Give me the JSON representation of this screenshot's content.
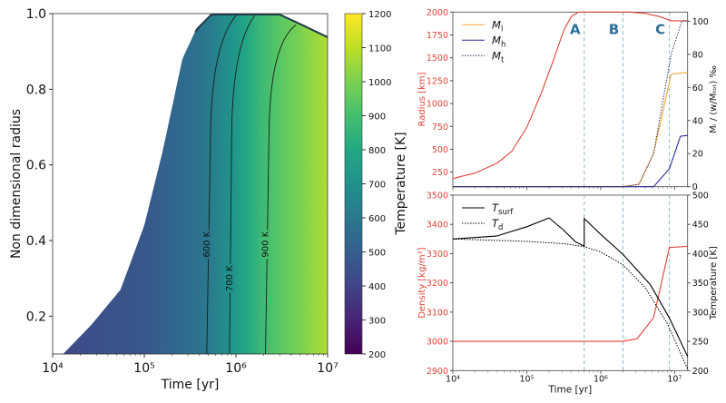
{
  "chart_data": [
    {
      "type": "heatmap",
      "xlabel": "Time [yr]",
      "ylabel": "Non dimensional radius",
      "xscale": "log",
      "xlim": [
        10000,
        10000000
      ],
      "ylim": [
        0.1,
        1.0
      ],
      "xticks": [
        {
          "v": 10000,
          "label": "10⁴"
        },
        {
          "v": 100000,
          "label": "10⁵"
        },
        {
          "v": 1000000,
          "label": "10⁶"
        },
        {
          "v": 10000000,
          "label": "10⁷"
        }
      ],
      "yticks": [
        {
          "v": 0.2,
          "label": "0.2"
        },
        {
          "v": 0.4,
          "label": "0.4"
        },
        {
          "v": 0.6,
          "label": "0.6"
        },
        {
          "v": 0.8,
          "label": "0.8"
        },
        {
          "v": 1.0,
          "label": "1.0"
        }
      ],
      "colorbar": {
        "label": "Temperature [K]",
        "colormap": "viridis",
        "range": [
          200,
          1200
        ],
        "ticks": [
          "200",
          "300",
          "400",
          "500",
          "600",
          "700",
          "800",
          "900",
          "1000",
          "1100",
          "1200"
        ]
      },
      "outer_boundary": {
        "t": [
          13000,
          26000,
          55000,
          100000,
          160000,
          260000,
          370000,
          540000,
          3000000,
          5000000,
          10000000
        ],
        "r": [
          0.1,
          0.175,
          0.27,
          0.44,
          0.64,
          0.88,
          0.96,
          1.0,
          1.0,
          0.975,
          0.94
        ]
      },
      "temperature_vs_time": {
        "t": [
          10000,
          100000,
          500000,
          850000,
          2150000,
          10000000
        ],
        "T": [
          420,
          470,
          600,
          700,
          900,
          1080
        ]
      },
      "contours": [
        {
          "label": "600 K",
          "t_bottom": 480000,
          "t_mid": 530000,
          "t_top": 1000000
        },
        {
          "label": "700 K",
          "t_bottom": 850000,
          "t_mid": 900000,
          "t_top": 1600000
        },
        {
          "label": "900 K",
          "t_bottom": 2100000,
          "t_mid": 2300000,
          "t_top": 4500000,
          "r_top": 0.97
        }
      ]
    },
    {
      "type": "line",
      "xscale": "log",
      "xlim": [
        10000,
        15000000
      ],
      "ylabel": "Radius [km]",
      "ylim": [
        91,
        2000
      ],
      "yticks": [
        "250",
        "500",
        "750",
        "1000",
        "1250",
        "1500",
        "1750",
        "2000"
      ],
      "y2label": "Mᵢ / (w/Mₜₒₜ) ‰",
      "y2lim": [
        0,
        105.5
      ],
      "y2ticks": [
        "0",
        "20",
        "40",
        "60",
        "80",
        "100"
      ],
      "radius_color": "#e0443a",
      "radius": {
        "t": [
          10000,
          20000,
          40000,
          63000,
          100000,
          160000,
          224000,
          316000,
          400000,
          500000,
          2500000,
          4000000,
          6300000,
          9000000,
          15000000
        ],
        "km": [
          180,
          240,
          350,
          480,
          740,
          1130,
          1450,
          1800,
          1950,
          2000,
          2000,
          1985,
          1950,
          1905,
          1905
        ]
      },
      "series": [
        {
          "name": "M",
          "sub": "l",
          "color": "#f0a830",
          "dash": "solid",
          "t": [
            10000,
            2000000,
            3300000,
            5200000,
            9000000,
            11000000,
            15000000
          ],
          "v": [
            0,
            0,
            1.5,
            20,
            68,
            68.5,
            69
          ]
        },
        {
          "name": "M",
          "sub": "h",
          "color": "#2a2a9a",
          "dash": "solid",
          "t": [
            10000,
            5200000,
            8500000,
            12000000,
            15000000
          ],
          "v": [
            0,
            0,
            10.8,
            30.5,
            31
          ]
        },
        {
          "name": "M",
          "sub": "t",
          "color": "#333366",
          "dash": "dotted",
          "t": [
            10000,
            2000000,
            3300000,
            5200000,
            9000000,
            12500000,
            15000000
          ],
          "v": [
            0,
            0,
            1.5,
            20,
            80,
            100,
            100
          ]
        }
      ],
      "phase_lines": [
        {
          "label": "A",
          "t": 600000
        },
        {
          "label": "B",
          "t": 2000000
        },
        {
          "label": "C",
          "t": 8500000
        }
      ],
      "phase_color": "#2e6f96",
      "legend": "top-left"
    },
    {
      "type": "line",
      "xscale": "log",
      "xlabel": "Time [yr]",
      "xlim": [
        10000,
        15000000
      ],
      "xticks": [
        {
          "v": 10000,
          "label": "10⁴"
        },
        {
          "v": 100000,
          "label": "10⁵"
        },
        {
          "v": 1000000,
          "label": "10⁶"
        },
        {
          "v": 10000000,
          "label": "10⁷"
        }
      ],
      "ylabel": "Density [kg/m³]",
      "ylim": [
        2900,
        3500
      ],
      "yticks": [
        "2900",
        "3000",
        "3100",
        "3200",
        "3300",
        "3400",
        "3500"
      ],
      "y2label": "Temperature [K]",
      "y2lim": [
        200,
        500
      ],
      "y2ticks": [
        "200",
        "250",
        "300",
        "350",
        "400",
        "450",
        "500"
      ],
      "density_color": "#e0443a",
      "density": {
        "t": [
          10000,
          2000000,
          3100000,
          5200000,
          8500000,
          15000000
        ],
        "v": [
          3000,
          3000,
          3009,
          3081,
          3321,
          3325
        ]
      },
      "series": [
        {
          "name": "T",
          "sub": "surf",
          "color": "#000000",
          "dash": "solid",
          "t": [
            10000,
            39000,
            100000,
            200000,
            310000,
            457000,
            600000,
            600001,
            1000000,
            2000000,
            4700000,
            8500000,
            15000000
          ],
          "v": [
            425,
            430,
            446,
            461,
            441,
            420,
            413,
            460,
            433,
            399,
            347,
            290,
            224
          ]
        },
        {
          "name": "T",
          "sub": "d",
          "color": "#000000",
          "dash": "dotted",
          "t": [
            10000,
            100000,
            316000,
            600000,
            1000000,
            2000000,
            4000000,
            8000000,
            15000000
          ],
          "v": [
            425,
            421,
            417,
            412,
            403,
            381,
            342,
            280,
            203
          ]
        }
      ],
      "phase_lines": [
        {
          "t": 600000
        },
        {
          "t": 2000000
        },
        {
          "t": 8500000
        }
      ],
      "legend": "top-left"
    }
  ]
}
